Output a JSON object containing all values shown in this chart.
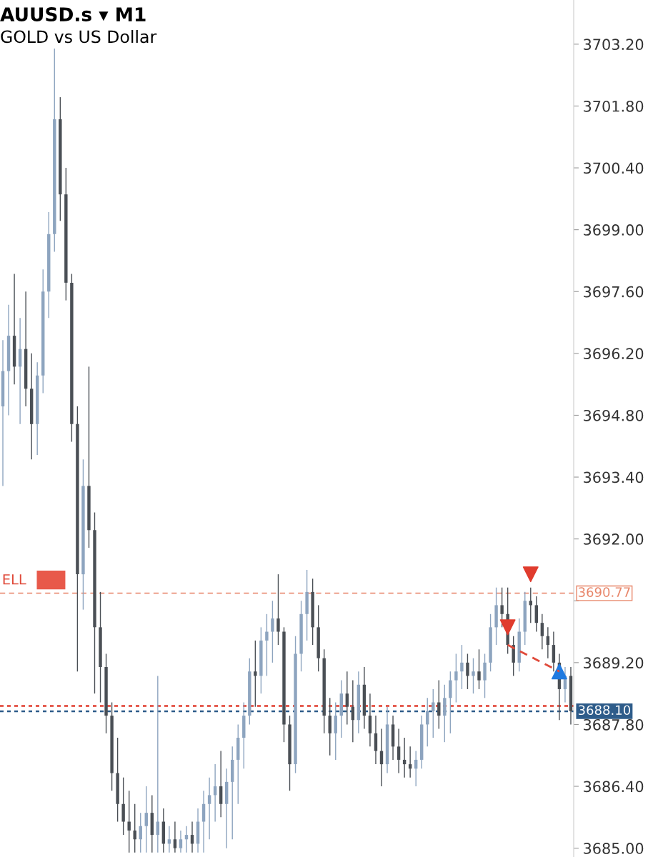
{
  "chart_data": {
    "type": "candlestick",
    "title": "AUUSD.s ▾ M1",
    "subtitle": "GOLD vs US Dollar",
    "categories": [
      null,
      null,
      null,
      null,
      null,
      null,
      null,
      null,
      null,
      null,
      null,
      null,
      null,
      null,
      null,
      null,
      null,
      null,
      null,
      null,
      null,
      null,
      null,
      null,
      null,
      null,
      null,
      null,
      null,
      null,
      null,
      null,
      null,
      null,
      null,
      null,
      null,
      null,
      null,
      null,
      null,
      null,
      null,
      null,
      null,
      null,
      null,
      null,
      null,
      null,
      null,
      null,
      null,
      null,
      null,
      null,
      null,
      null,
      null,
      null,
      null,
      null,
      null,
      null,
      null,
      null,
      null,
      null,
      null,
      null,
      null,
      null,
      null,
      null,
      null,
      null,
      null,
      null,
      null,
      null,
      null,
      null,
      null,
      null,
      null,
      null,
      null,
      null,
      null,
      null,
      null,
      null,
      null,
      null,
      null,
      null,
      null,
      null,
      null,
      null
    ],
    "ohlc": [
      [
        3695.0,
        3696.5,
        3693.2,
        3695.8
      ],
      [
        3695.8,
        3697.3,
        3694.8,
        3696.6
      ],
      [
        3696.6,
        3698.0,
        3695.5,
        3695.9
      ],
      [
        3695.9,
        3697.0,
        3694.6,
        3696.3
      ],
      [
        3696.3,
        3697.6,
        3695.0,
        3695.4
      ],
      [
        3695.4,
        3696.2,
        3693.8,
        3694.6
      ],
      [
        3694.6,
        3696.0,
        3693.9,
        3695.7
      ],
      [
        3695.7,
        3698.1,
        3695.3,
        3697.6
      ],
      [
        3697.6,
        3699.4,
        3697.0,
        3698.9
      ],
      [
        3698.9,
        3703.1,
        3698.5,
        3701.5
      ],
      [
        3701.5,
        3702.0,
        3699.2,
        3699.8
      ],
      [
        3699.8,
        3700.4,
        3697.4,
        3697.8
      ],
      [
        3697.8,
        3698.0,
        3694.2,
        3694.6
      ],
      [
        3694.6,
        3695.0,
        3689.0,
        3691.2
      ],
      [
        3691.2,
        3693.8,
        3690.4,
        3693.2
      ],
      [
        3693.2,
        3695.9,
        3691.8,
        3692.2
      ],
      [
        3692.2,
        3692.6,
        3688.5,
        3690.0
      ],
      [
        3690.0,
        3690.8,
        3688.3,
        3689.1
      ],
      [
        3689.1,
        3689.4,
        3687.6,
        3688.0
      ],
      [
        3688.0,
        3688.3,
        3686.3,
        3686.7
      ],
      [
        3686.7,
        3687.5,
        3685.6,
        3686.0
      ],
      [
        3686.0,
        3686.6,
        3685.3,
        3685.6
      ],
      [
        3685.6,
        3686.3,
        3684.9,
        3685.4
      ],
      [
        3685.4,
        3686.0,
        3684.9,
        3685.2
      ],
      [
        3685.2,
        3685.8,
        3684.9,
        3685.5
      ],
      [
        3685.5,
        3686.4,
        3684.9,
        3685.8
      ],
      [
        3685.8,
        3686.2,
        3684.9,
        3685.3
      ],
      [
        3685.3,
        3688.9,
        3684.9,
        3685.6
      ],
      [
        3685.6,
        3685.9,
        3684.9,
        3685.1
      ],
      [
        3685.1,
        3685.5,
        3684.9,
        3685.2
      ],
      [
        3685.2,
        3685.6,
        3684.9,
        3685.0
      ],
      [
        3685.0,
        3685.4,
        3684.9,
        3685.2
      ],
      [
        3685.2,
        3685.5,
        3684.9,
        3685.3
      ],
      [
        3685.3,
        3685.6,
        3684.9,
        3685.1
      ],
      [
        3685.1,
        3685.9,
        3684.9,
        3685.6
      ],
      [
        3685.6,
        3686.3,
        3684.9,
        3686.0
      ],
      [
        3686.0,
        3686.6,
        3685.2,
        3686.2
      ],
      [
        3686.2,
        3686.9,
        3685.6,
        3686.4
      ],
      [
        3686.4,
        3687.2,
        3685.7,
        3686.0
      ],
      [
        3686.0,
        3686.8,
        3685.0,
        3686.5
      ],
      [
        3686.5,
        3687.3,
        3685.2,
        3687.0
      ],
      [
        3687.0,
        3687.8,
        3686.0,
        3687.5
      ],
      [
        3687.5,
        3688.3,
        3686.8,
        3688.0
      ],
      [
        3688.0,
        3689.3,
        3687.8,
        3689.0
      ],
      [
        3689.0,
        3689.7,
        3688.2,
        3688.9
      ],
      [
        3688.9,
        3690.0,
        3688.5,
        3689.7
      ],
      [
        3689.7,
        3690.3,
        3688.9,
        3689.9
      ],
      [
        3689.9,
        3690.6,
        3689.2,
        3690.2
      ],
      [
        3690.2,
        3691.2,
        3689.6,
        3689.9
      ],
      [
        3689.9,
        3690.0,
        3687.4,
        3687.8
      ],
      [
        3687.8,
        3688.0,
        3686.3,
        3686.9
      ],
      [
        3686.9,
        3689.8,
        3686.7,
        3689.4
      ],
      [
        3689.4,
        3690.6,
        3689.0,
        3690.3
      ],
      [
        3690.3,
        3691.3,
        3689.7,
        3690.8
      ],
      [
        3690.8,
        3691.1,
        3689.6,
        3690.0
      ],
      [
        3690.0,
        3690.5,
        3689.0,
        3689.3
      ],
      [
        3689.3,
        3689.5,
        3687.6,
        3688.0
      ],
      [
        3688.0,
        3688.4,
        3687.1,
        3687.6
      ],
      [
        3687.6,
        3688.3,
        3687.0,
        3688.0
      ],
      [
        3688.0,
        3688.8,
        3687.5,
        3688.5
      ],
      [
        3688.5,
        3689.0,
        3687.8,
        3688.2
      ],
      [
        3688.2,
        3688.8,
        3687.4,
        3687.9
      ],
      [
        3687.9,
        3689.0,
        3687.6,
        3688.7
      ],
      [
        3688.7,
        3689.1,
        3687.7,
        3688.0
      ],
      [
        3688.0,
        3688.5,
        3687.3,
        3687.6
      ],
      [
        3687.6,
        3688.0,
        3686.9,
        3687.2
      ],
      [
        3687.2,
        3687.7,
        3686.4,
        3686.9
      ],
      [
        3686.9,
        3688.2,
        3686.7,
        3687.8
      ],
      [
        3687.8,
        3688.0,
        3687.0,
        3687.3
      ],
      [
        3687.3,
        3687.7,
        3686.7,
        3687.0
      ],
      [
        3687.0,
        3687.5,
        3686.6,
        3686.9
      ],
      [
        3686.9,
        3687.3,
        3686.6,
        3686.8
      ],
      [
        3686.8,
        3687.2,
        3686.4,
        3687.0
      ],
      [
        3687.0,
        3688.0,
        3686.8,
        3687.8
      ],
      [
        3687.8,
        3688.4,
        3687.3,
        3688.1
      ],
      [
        3688.1,
        3688.6,
        3687.5,
        3688.3
      ],
      [
        3688.3,
        3688.8,
        3687.7,
        3688.0
      ],
      [
        3688.0,
        3688.7,
        3687.4,
        3688.4
      ],
      [
        3688.4,
        3689.0,
        3687.6,
        3688.8
      ],
      [
        3688.8,
        3689.4,
        3688.3,
        3689.0
      ],
      [
        3689.0,
        3689.6,
        3688.6,
        3689.2
      ],
      [
        3689.2,
        3689.4,
        3688.6,
        3688.9
      ],
      [
        3688.9,
        3689.3,
        3688.5,
        3689.0
      ],
      [
        3689.0,
        3689.5,
        3688.6,
        3688.8
      ],
      [
        3688.8,
        3689.4,
        3688.4,
        3689.2
      ],
      [
        3689.2,
        3690.3,
        3689.0,
        3690.0
      ],
      [
        3690.0,
        3690.9,
        3689.6,
        3690.5
      ],
      [
        3690.5,
        3690.9,
        3690.0,
        3690.3
      ],
      [
        3690.3,
        3690.9,
        3689.4,
        3689.6
      ],
      [
        3689.6,
        3689.8,
        3688.9,
        3689.2
      ],
      [
        3689.2,
        3690.2,
        3689.0,
        3689.9
      ],
      [
        3689.9,
        3690.8,
        3689.6,
        3690.6
      ],
      [
        3690.6,
        3690.9,
        3690.1,
        3690.5
      ],
      [
        3690.5,
        3690.7,
        3689.9,
        3690.1
      ],
      [
        3690.1,
        3690.3,
        3689.5,
        3689.8
      ],
      [
        3689.8,
        3690.0,
        3689.3,
        3689.6
      ],
      [
        3689.6,
        3689.9,
        3689.0,
        3689.2
      ],
      [
        3689.2,
        3689.4,
        3687.9,
        3688.6
      ],
      [
        3688.6,
        3689.1,
        3688.3,
        3688.9
      ],
      [
        3688.9,
        3689.1,
        3687.8,
        3688.1
      ]
    ],
    "colors": [
      "#8da4bf",
      "#8da4bf",
      "#4a4f55",
      "#8da4bf",
      "#4a4f55",
      "#4a4f55",
      "#8da4bf",
      "#8da4bf",
      "#8da4bf",
      "#8da4bf",
      "#4a4f55",
      "#4a4f55",
      "#4a4f55",
      "#4a4f55",
      "#8da4bf",
      "#4a4f55",
      "#4a4f55",
      "#4a4f55",
      "#4a4f55",
      "#4a4f55",
      "#4a4f55",
      "#4a4f55",
      "#4a4f55",
      "#4a4f55",
      "#8da4bf",
      "#8da4bf",
      "#4a4f55",
      "#8da4bf",
      "#4a4f55",
      "#8da4bf",
      "#4a4f55",
      "#8da4bf",
      "#8da4bf",
      "#4a4f55",
      "#8da4bf",
      "#8da4bf",
      "#8da4bf",
      "#8da4bf",
      "#4a4f55",
      "#8da4bf",
      "#8da4bf",
      "#8da4bf",
      "#8da4bf",
      "#8da4bf",
      "#4a4f55",
      "#8da4bf",
      "#8da4bf",
      "#8da4bf",
      "#4a4f55",
      "#4a4f55",
      "#4a4f55",
      "#8da4bf",
      "#8da4bf",
      "#8da4bf",
      "#4a4f55",
      "#4a4f55",
      "#4a4f55",
      "#4a4f55",
      "#8da4bf",
      "#8da4bf",
      "#4a4f55",
      "#4a4f55",
      "#8da4bf",
      "#4a4f55",
      "#4a4f55",
      "#4a4f55",
      "#4a4f55",
      "#8da4bf",
      "#4a4f55",
      "#4a4f55",
      "#4a4f55",
      "#4a4f55",
      "#8da4bf",
      "#8da4bf",
      "#8da4bf",
      "#8da4bf",
      "#4a4f55",
      "#8da4bf",
      "#8da4bf",
      "#8da4bf",
      "#8da4bf",
      "#4a4f55",
      "#8da4bf",
      "#4a4f55",
      "#8da4bf",
      "#8da4bf",
      "#8da4bf",
      "#4a4f55",
      "#4a4f55",
      "#4a4f55",
      "#8da4bf",
      "#8da4bf",
      "#4a4f55",
      "#4a4f55",
      "#4a4f55",
      "#4a4f55",
      "#4a4f55",
      "#4a4f55",
      "#8da4bf",
      "#4a4f55"
    ],
    "series": [
      {
        "type": "line",
        "color": "#e04a3a",
        "line_style": "dashed",
        "marker": "none",
        "values": [
          null,
          null,
          null,
          null,
          null,
          null,
          null,
          null,
          null,
          null,
          null,
          null,
          null,
          null,
          null,
          null,
          null,
          null,
          null,
          null,
          null,
          null,
          null,
          null,
          null,
          null,
          null,
          null,
          null,
          null,
          null,
          null,
          null,
          null,
          null,
          null,
          null,
          null,
          null,
          null,
          null,
          null,
          null,
          null,
          null,
          null,
          null,
          null,
          null,
          null,
          null,
          null,
          null,
          null,
          null,
          null,
          null,
          null,
          null,
          null,
          null,
          null,
          null,
          null,
          null,
          null,
          null,
          null,
          null,
          null,
          null,
          null,
          null,
          null,
          null,
          null,
          null,
          null,
          null,
          null,
          null,
          null,
          null,
          null,
          null,
          null,
          null,
          null,
          3689.6,
          null,
          null,
          null,
          null,
          null,
          null,
          null,
          null,
          3689.0,
          null,
          null
        ]
      },
      {
        "type": "scatter",
        "color": "#e03c2e",
        "values": [
          null,
          null,
          null,
          null,
          null,
          null,
          null,
          null,
          null,
          null,
          null,
          null,
          null,
          null,
          null,
          null,
          null,
          null,
          null,
          null,
          null,
          null,
          null,
          null,
          null,
          null,
          null,
          null,
          null,
          null,
          null,
          null,
          null,
          null,
          null,
          null,
          null,
          null,
          null,
          null,
          null,
          null,
          null,
          null,
          null,
          null,
          null,
          null,
          null,
          null,
          null,
          null,
          null,
          null,
          null,
          null,
          null,
          null,
          null,
          null,
          null,
          null,
          null,
          null,
          null,
          null,
          null,
          null,
          null,
          null,
          null,
          null,
          null,
          null,
          null,
          null,
          null,
          null,
          null,
          null,
          null,
          null,
          null,
          null,
          null,
          null,
          null,
          null,
          3690.0,
          null,
          null,
          null,
          3691.2,
          null,
          null,
          null,
          null,
          null,
          null,
          null
        ]
      },
      {
        "type": "scatter",
        "color": "#1f7ae0",
        "marker": "triangle",
        "values": [
          null,
          null,
          null,
          null,
          null,
          null,
          null,
          null,
          null,
          null,
          null,
          null,
          null,
          null,
          null,
          null,
          null,
          null,
          null,
          null,
          null,
          null,
          null,
          null,
          null,
          null,
          null,
          null,
          null,
          null,
          null,
          null,
          null,
          null,
          null,
          null,
          null,
          null,
          null,
          null,
          null,
          null,
          null,
          null,
          null,
          null,
          null,
          null,
          null,
          null,
          null,
          null,
          null,
          null,
          null,
          null,
          null,
          null,
          null,
          null,
          null,
          null,
          null,
          null,
          null,
          null,
          null,
          null,
          null,
          null,
          null,
          null,
          null,
          null,
          null,
          null,
          null,
          null,
          null,
          null,
          null,
          null,
          null,
          null,
          null,
          null,
          null,
          null,
          null,
          null,
          null,
          null,
          null,
          null,
          null,
          null,
          null,
          3689.0,
          null,
          null
        ]
      }
    ],
    "ylim": [
      3684.8,
      3704.2
    ],
    "yticks": [
      {
        "value": 3685.0,
        "label": "3685.00"
      },
      {
        "value": 3686.4,
        "label": "3686.40"
      },
      {
        "value": 3687.8,
        "label": "3687.80"
      },
      {
        "value": 3689.2,
        "label": "3689.20"
      },
      {
        "value": 3690.6,
        "label": null
      },
      {
        "value": 3692.0,
        "label": "3692.00"
      },
      {
        "value": 3693.4,
        "label": "3693.40"
      },
      {
        "value": 3694.8,
        "label": "3694.80"
      },
      {
        "value": 3696.2,
        "label": "3696.20"
      },
      {
        "value": 3697.6,
        "label": "3697.60"
      },
      {
        "value": 3699.0,
        "label": "3699.00"
      },
      {
        "value": 3700.4,
        "label": "3700.40"
      },
      {
        "value": 3701.8,
        "label": "3701.80"
      },
      {
        "value": 3703.2,
        "label": "3703.20"
      }
    ],
    "ref_lines": [
      {
        "axis": "y",
        "value": 3690.77,
        "label": "3690.77",
        "color": "#e8866a",
        "line_style": "dashed"
      },
      {
        "axis": "y",
        "value": 3688.22,
        "label": null,
        "color": "#e03c2e",
        "line_style": "dotted"
      },
      {
        "axis": "y",
        "value": 3688.1,
        "label": "3688.10",
        "color": "#2e5c8a",
        "line_style": "dotted"
      }
    ],
    "annotations": [
      {
        "text": "ELL",
        "y": 3690.77
      }
    ],
    "grid": false,
    "legend": false
  }
}
